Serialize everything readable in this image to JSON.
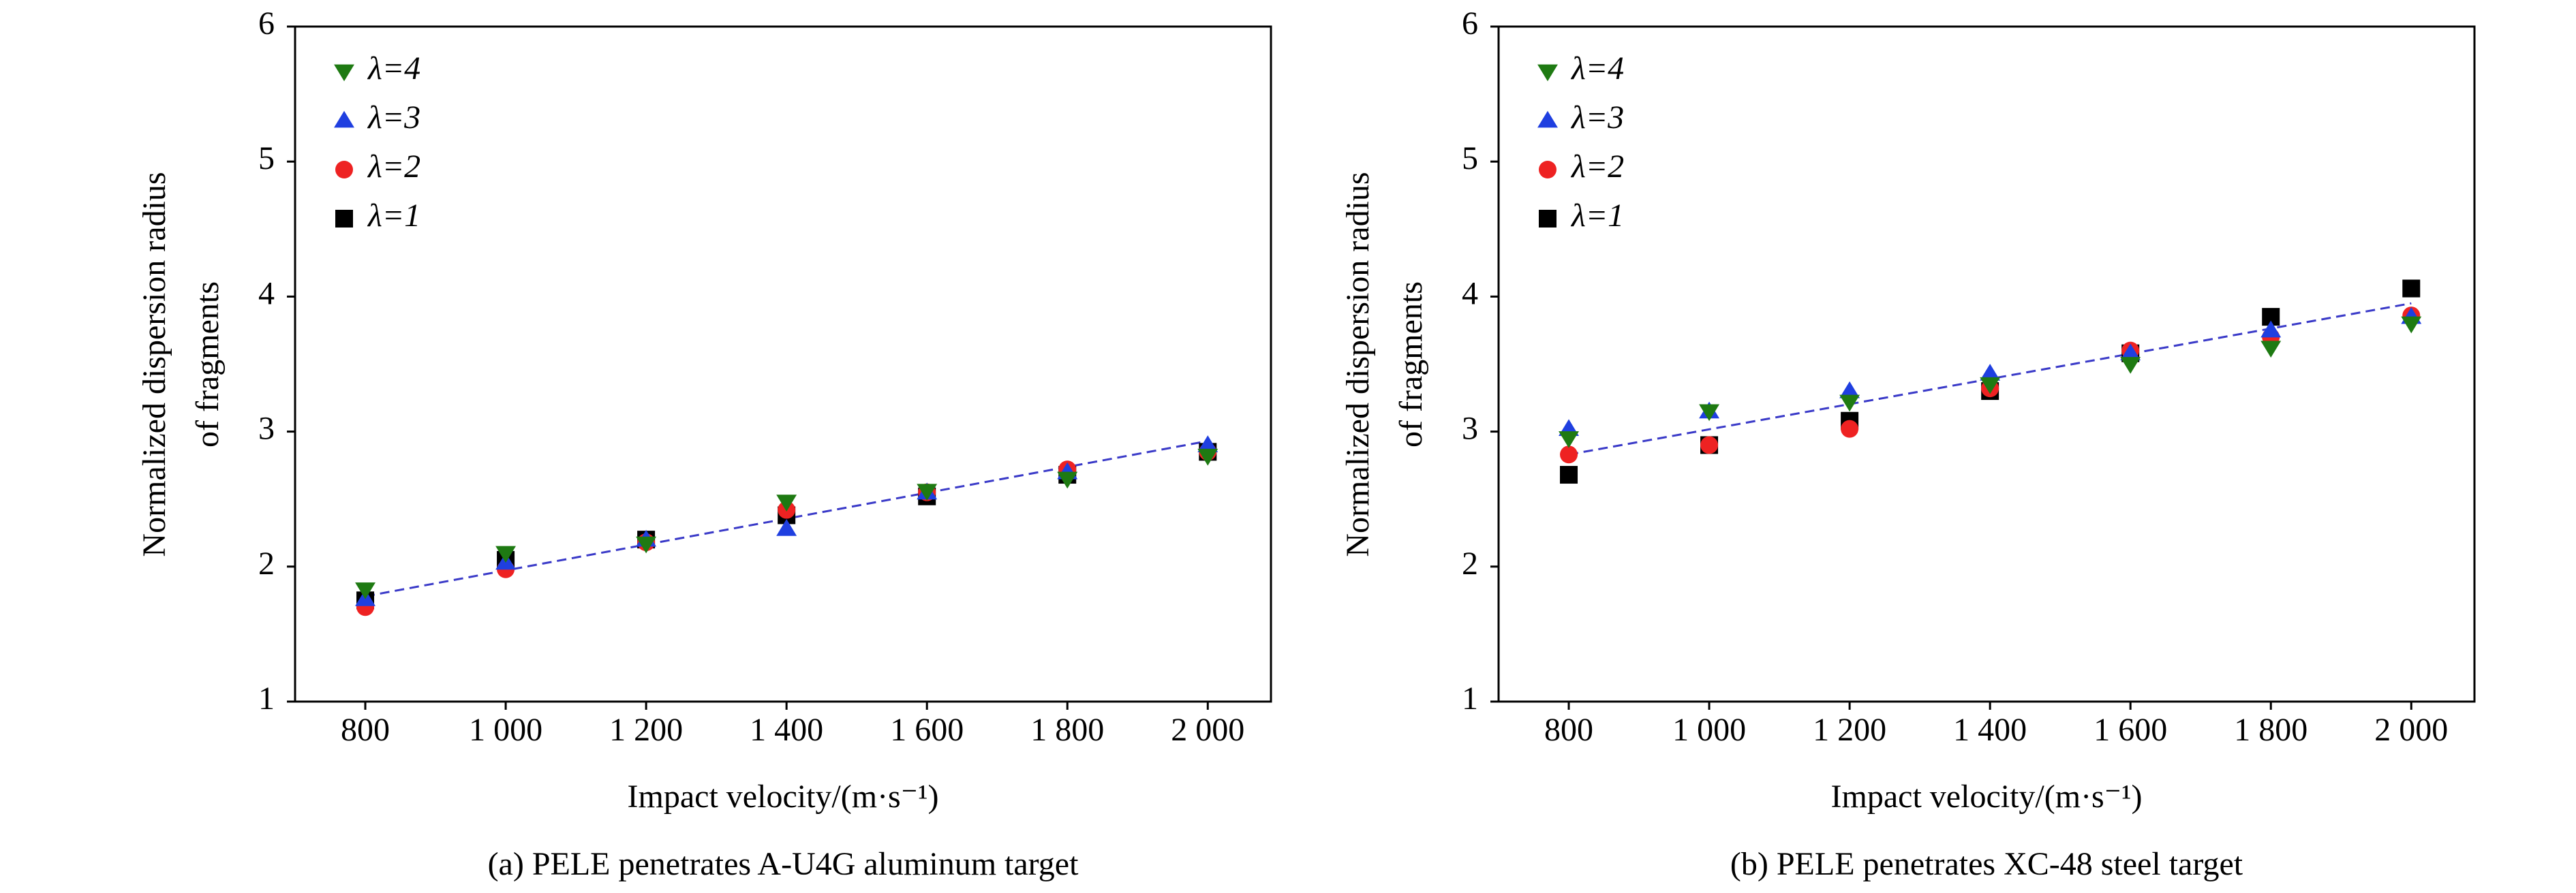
{
  "chart_data": [
    {
      "type": "scatter",
      "caption": "(a) PELE penetrates A-U4G aluminum target",
      "xlabel": "Impact velocity/(m·s⁻¹)",
      "ylabel": [
        "Normalized dispersion radius",
        "of fragments"
      ],
      "x": [
        800,
        1000,
        1200,
        1400,
        1600,
        1800,
        2000
      ],
      "xlim": [
        700,
        2090
      ],
      "xticks": [
        800,
        {
          "value": 1000,
          "label": "1 000"
        },
        {
          "value": 1200,
          "label": "1 200"
        },
        {
          "value": 1400,
          "label": "1 400"
        },
        {
          "value": 1600,
          "label": "1 600"
        },
        {
          "value": 1800,
          "label": "1 800"
        },
        {
          "value": 2000,
          "label": "2 000"
        }
      ],
      "ylim": [
        1,
        6
      ],
      "yticks": [
        1,
        2,
        3,
        4,
        5,
        6
      ],
      "legend": "upper left",
      "series": [
        {
          "name": "λ=4",
          "color": "#1e7a12",
          "marker": "v",
          "values": [
            1.83,
            2.1,
            2.17,
            2.48,
            2.56,
            2.65,
            2.82
          ]
        },
        {
          "name": "λ=3",
          "color": "#1f3fe0",
          "marker": "^",
          "values": [
            1.76,
            2.03,
            2.2,
            2.28,
            2.55,
            2.7,
            2.9
          ]
        },
        {
          "name": "λ=2",
          "color": "#ee2222",
          "marker": "o",
          "values": [
            1.7,
            1.98,
            2.18,
            2.42,
            2.55,
            2.72,
            2.85
          ]
        },
        {
          "name": "λ=1",
          "color": "#000000",
          "marker": "s",
          "values": [
            1.75,
            2.05,
            2.2,
            2.38,
            2.52,
            2.68,
            2.85
          ]
        }
      ],
      "trend": {
        "x": [
          800,
          2000
        ],
        "values": [
          1.78,
          2.93
        ],
        "color": "#3a3ac8"
      }
    },
    {
      "type": "scatter",
      "caption": "(b) PELE penetrates XC-48 steel target",
      "xlabel": "Impact velocity/(m·s⁻¹)",
      "ylabel": [
        "Normalized dispersion radius",
        "of fragments"
      ],
      "x": [
        800,
        1000,
        1200,
        1400,
        1600,
        1800,
        2000
      ],
      "xlim": [
        700,
        2090
      ],
      "xticks": [
        800,
        {
          "value": 1000,
          "label": "1 000"
        },
        {
          "value": 1200,
          "label": "1 200"
        },
        {
          "value": 1400,
          "label": "1 400"
        },
        {
          "value": 1600,
          "label": "1 600"
        },
        {
          "value": 1800,
          "label": "1 800"
        },
        {
          "value": 2000,
          "label": "2 000"
        }
      ],
      "ylim": [
        1,
        6
      ],
      "yticks": [
        1,
        2,
        3,
        4,
        5,
        6
      ],
      "legend": "upper left",
      "series": [
        {
          "name": "λ=4",
          "color": "#1e7a12",
          "marker": "v",
          "values": [
            2.95,
            3.15,
            3.22,
            3.35,
            3.5,
            3.62,
            3.8
          ]
        },
        {
          "name": "λ=3",
          "color": "#1f3fe0",
          "marker": "^",
          "values": [
            3.02,
            3.15,
            3.3,
            3.43,
            3.58,
            3.75,
            3.85
          ]
        },
        {
          "name": "λ=2",
          "color": "#ee2222",
          "marker": "o",
          "values": [
            2.83,
            2.9,
            3.02,
            3.32,
            3.6,
            3.7,
            3.86
          ]
        },
        {
          "name": "λ=1",
          "color": "#000000",
          "marker": "s",
          "values": [
            2.68,
            2.9,
            3.08,
            3.3,
            3.58,
            3.85,
            4.06
          ]
        }
      ],
      "trend": {
        "x": [
          800,
          2000
        ],
        "values": [
          2.83,
          3.95
        ],
        "color": "#3a3ac8"
      }
    }
  ]
}
